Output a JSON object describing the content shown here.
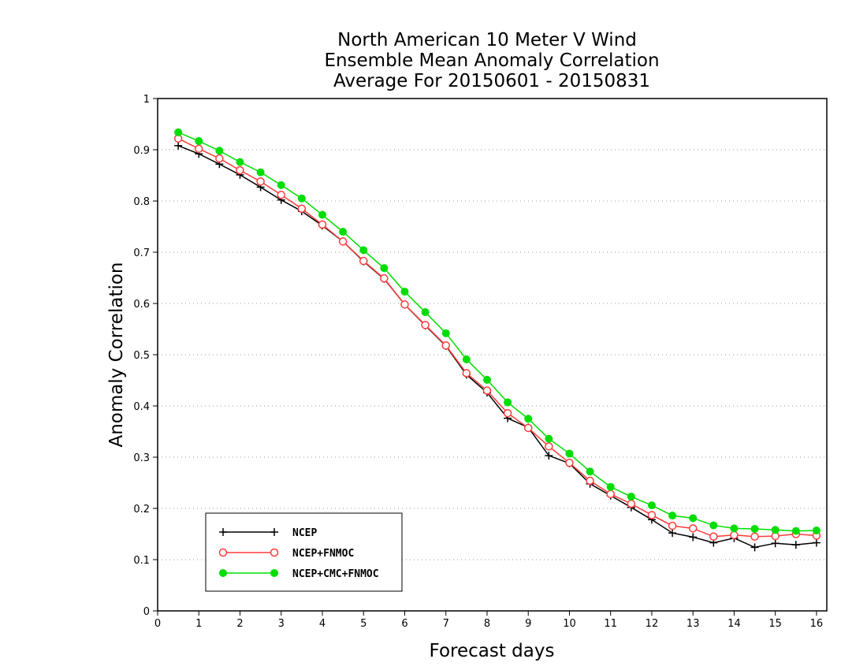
{
  "chart_data": {
    "type": "line",
    "title": [
      "North American 10 Meter V Wind",
      "Ensemble Mean Anomaly Correlation",
      "Average For 20150601 - 20150831"
    ],
    "xlabel": "Forecast days",
    "ylabel": "Anomaly Correlation",
    "xlim": [
      0,
      16.25
    ],
    "ylim": [
      0,
      1
    ],
    "xticks": [
      "0",
      "1",
      "2",
      "3",
      "4",
      "5",
      "6",
      "7",
      "8",
      "9",
      "10",
      "11",
      "12",
      "13",
      "14",
      "15",
      "16"
    ],
    "yticks": [
      "0",
      "0.1",
      "0.2",
      "0.3",
      "0.4",
      "0.5",
      "0.6",
      "0.7",
      "0.8",
      "0.9",
      "1"
    ],
    "grid": "horizontal dotted",
    "legend_position": "bottom-left",
    "x": [
      0.5,
      1,
      1.5,
      2,
      2.5,
      3,
      3.5,
      4,
      4.5,
      5,
      5.5,
      6,
      6.5,
      7,
      7.5,
      8,
      8.5,
      9,
      9.5,
      10,
      10.5,
      11,
      11.5,
      12,
      12.5,
      13,
      13.5,
      14,
      14.5,
      15,
      15.5,
      16
    ],
    "series": [
      {
        "name": "NCEP",
        "color": "#000000",
        "marker": "plus",
        "values": [
          0.908,
          0.892,
          0.872,
          0.851,
          0.827,
          0.802,
          0.78,
          0.752,
          0.721,
          0.682,
          0.648,
          0.598,
          0.557,
          0.517,
          0.461,
          0.426,
          0.376,
          0.358,
          0.303,
          0.288,
          0.248,
          0.225,
          0.202,
          0.178,
          0.152,
          0.144,
          0.133,
          0.142,
          0.124,
          0.132,
          0.129,
          0.133
        ]
      },
      {
        "name": "NCEP+FNMOC",
        "color": "#ff3b3b",
        "marker": "open-circle",
        "values": [
          0.922,
          0.902,
          0.883,
          0.86,
          0.838,
          0.812,
          0.785,
          0.754,
          0.721,
          0.683,
          0.649,
          0.598,
          0.558,
          0.518,
          0.464,
          0.43,
          0.386,
          0.357,
          0.321,
          0.289,
          0.254,
          0.228,
          0.209,
          0.187,
          0.166,
          0.161,
          0.145,
          0.148,
          0.145,
          0.146,
          0.15,
          0.147
        ]
      },
      {
        "name": "NCEP+CMC+FNMOC",
        "color": "#00dd00",
        "marker": "filled-circle",
        "values": [
          0.934,
          0.917,
          0.898,
          0.876,
          0.856,
          0.831,
          0.805,
          0.773,
          0.74,
          0.704,
          0.669,
          0.623,
          0.583,
          0.542,
          0.491,
          0.451,
          0.407,
          0.375,
          0.336,
          0.307,
          0.272,
          0.242,
          0.223,
          0.206,
          0.186,
          0.181,
          0.167,
          0.161,
          0.16,
          0.158,
          0.156,
          0.157
        ]
      }
    ]
  }
}
